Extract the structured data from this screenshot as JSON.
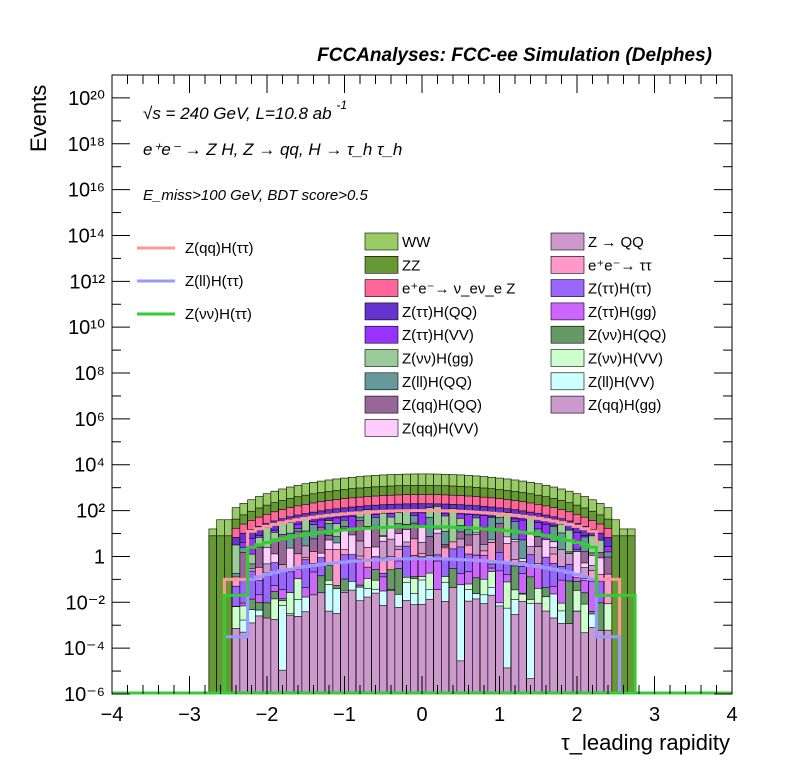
{
  "title": "FCCAnalyses: FCC-ee Simulation (Delphes)",
  "annotations": {
    "energy": "√s = 240 GeV, L=10.8 ab",
    "energy_sup": "-1",
    "process": "e⁺e⁻ → Z H, Z → qq, H → τ_h τ_h",
    "cuts": "E_miss>100 GeV, BDT score>0.5"
  },
  "chart_data": {
    "type": "bar",
    "subtype": "stacked log-scale histogram with overlaid signal lines",
    "title": "FCCAnalyses: FCC-ee Simulation (Delphes)",
    "xlabel": "τ_leading rapidity",
    "ylabel": "Events",
    "xlim": [
      -4,
      4
    ],
    "ylim": [
      1e-06,
      1e+21
    ],
    "yscale": "log",
    "x_ticks": [
      "−4",
      "−3",
      "−2",
      "−1",
      "0",
      "1",
      "2",
      "3",
      "4"
    ],
    "y_ticks": [
      "10⁻⁶",
      "10⁻⁴",
      "10⁻²",
      "1",
      "10²",
      "10⁴",
      "10⁶",
      "10⁸",
      "10¹⁰",
      "10¹²",
      "10¹⁴",
      "10¹⁶",
      "10¹⁸",
      "10²⁰"
    ],
    "legend_position": "top",
    "stack_layers": [
      {
        "name": "WW",
        "color": "#99cc66",
        "peak_log10": 3.6
      },
      {
        "name": "ZZ",
        "color": "#669933",
        "peak_log10": 3.1
      },
      {
        "name": "e⁺e⁻→ ν_eν_e Z",
        "color": "#ff6699",
        "peak_log10": 2.7
      },
      {
        "name": "Z(ττ)H(QQ)",
        "color": "#6633cc",
        "peak_log10": 2.3
      },
      {
        "name": "Z(ττ)H(VV)",
        "color": "#9933ff",
        "peak_log10": 1.9
      },
      {
        "name": "Z(νν)H(gg)",
        "color": "#99cc99",
        "peak_log10": 1.6
      },
      {
        "name": "Z(ll)H(QQ)",
        "color": "#669999",
        "peak_log10": 1.3
      },
      {
        "name": "Z(qq)H(QQ)",
        "color": "#996699",
        "peak_log10": 1.1
      },
      {
        "name": "Z(qq)H(VV)",
        "color": "#ffccff",
        "peak_log10": 0.8
      },
      {
        "name": "Z → QQ",
        "color": "#cc99cc",
        "peak_log10": 0.5
      },
      {
        "name": "e⁺e⁻→ ττ",
        "color": "#ff99cc",
        "peak_log10": 0.2
      },
      {
        "name": "Z(ττ)H(ττ)",
        "color": "#9966ff",
        "peak_log10": -0.1
      },
      {
        "name": "Z(ττ)H(gg)",
        "color": "#cc66ff",
        "peak_log10": -0.4
      },
      {
        "name": "Z(νν)H(QQ)",
        "color": "#669966",
        "peak_log10": -0.7
      },
      {
        "name": "Z(νν)H(VV)",
        "color": "#ccffcc",
        "peak_log10": -1.0
      },
      {
        "name": "Z(ll)H(VV)",
        "color": "#ccffff",
        "peak_log10": -1.5
      },
      {
        "name": "Z(qq)H(gg)",
        "color": "#cc99cc",
        "peak_log10": -1.8
      }
    ],
    "signal_lines": [
      {
        "name": "Z(qq)H(ττ)",
        "color": "#ff9999",
        "peak_log10": 2.0,
        "range": [
          -2.55,
          2.55
        ]
      },
      {
        "name": "Z(ll)H(ττ)",
        "color": "#9999ff",
        "peak_log10": -0.1,
        "range": [
          -2.55,
          2.55
        ]
      },
      {
        "name": "Z(νν)H(ττ)",
        "color": "#33cc33",
        "peak_log10": 1.3,
        "range": [
          -2.55,
          2.75
        ]
      }
    ],
    "signal_legend": [
      "Z(qq)H(ττ)",
      "Z(ll)H(ττ)",
      "Z(νν)H(ττ)"
    ],
    "background_legend": [
      "WW",
      "Z → QQ",
      "ZZ",
      "e⁺e⁻→ ττ",
      "e⁺e⁻→ ν_eν_e Z",
      "Z(ττ)H(ττ)",
      "Z(ττ)H(QQ)",
      "Z(ττ)H(gg)",
      "Z(ττ)H(VV)",
      "Z(νν)H(QQ)",
      "Z(νν)H(gg)",
      "Z(νν)H(VV)",
      "Z(ll)H(QQ)",
      "Z(ll)H(VV)",
      "Z(qq)H(QQ)",
      "Z(qq)H(gg)",
      "Z(qq)H(VV)"
    ],
    "histogram_range": [
      -2.75,
      2.75
    ],
    "total_peak_events": 5000
  }
}
